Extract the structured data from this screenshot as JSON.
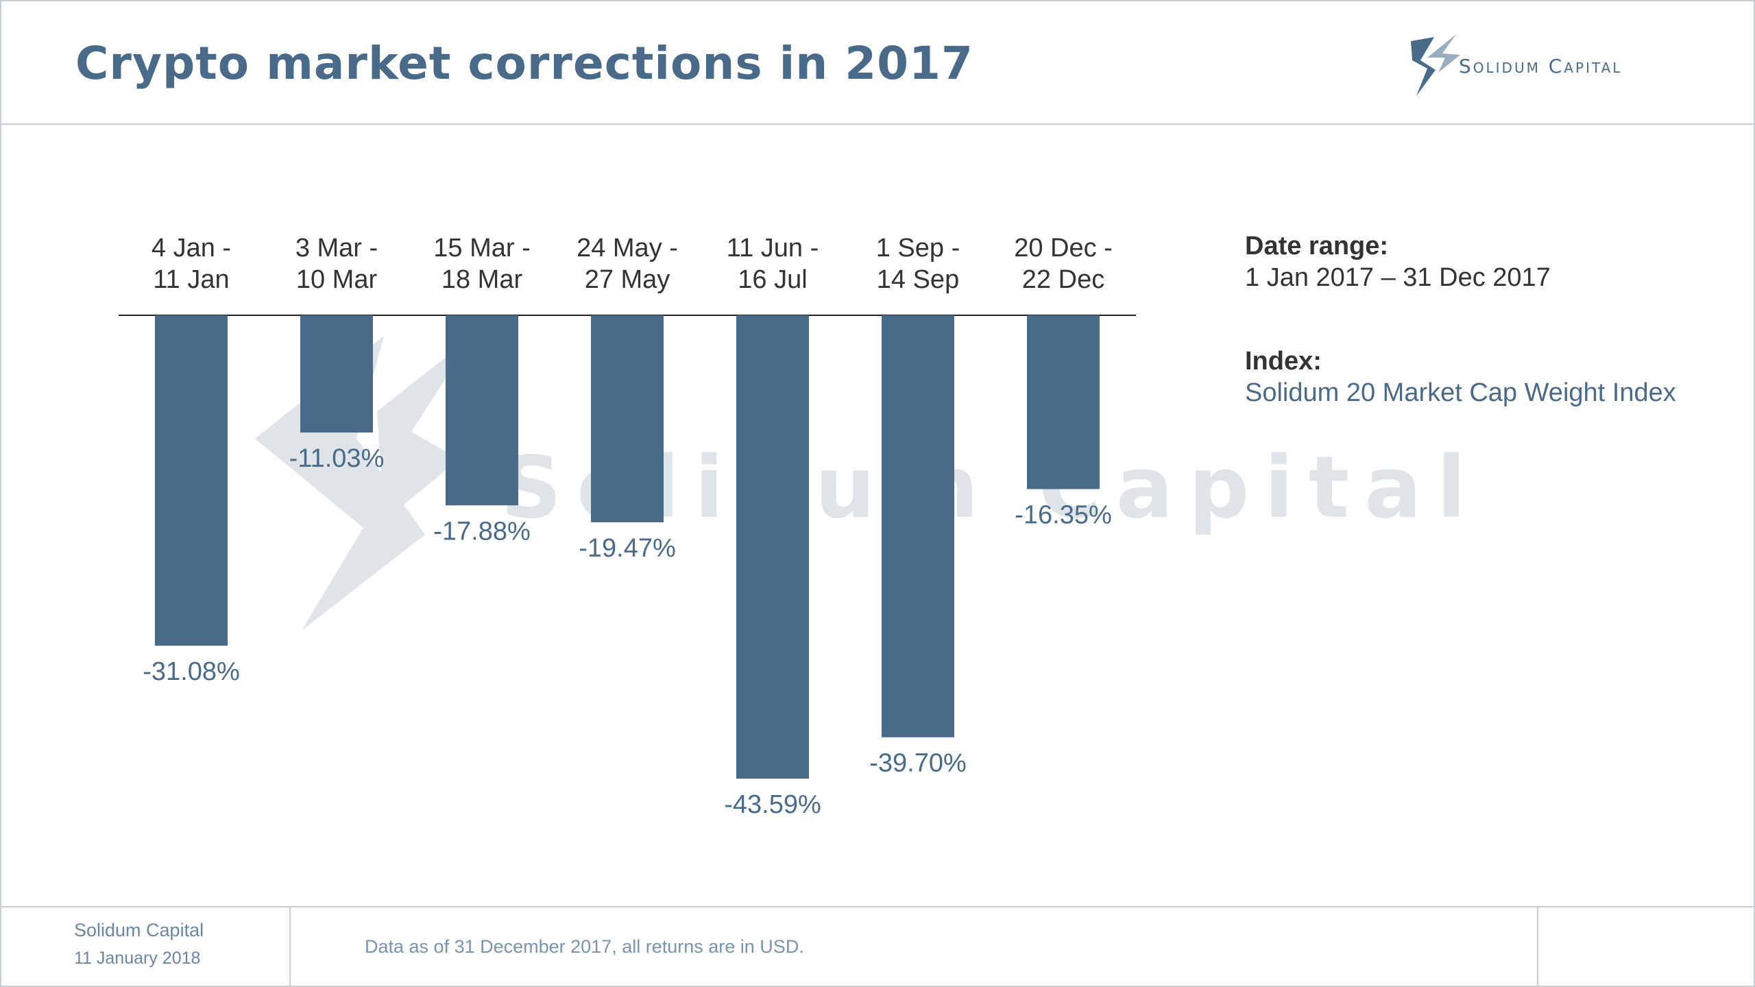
{
  "header": {
    "title": "Crypto market corrections in 2017",
    "brand": "Solidum Capital"
  },
  "colors": {
    "bar": "#4a6a89",
    "title": "#4a6a89",
    "watermark": "#dfe4e8"
  },
  "chart_data": {
    "type": "bar",
    "orientation": "vertical-negative",
    "categories": [
      [
        "4 Jan -",
        "11 Jan"
      ],
      [
        "3 Mar -",
        "10 Mar"
      ],
      [
        "15 Mar -",
        "18 Mar"
      ],
      [
        "24 May -",
        "27 May"
      ],
      [
        "11 Jun -",
        "16 Jul"
      ],
      [
        "1 Sep -",
        "14 Sep"
      ],
      [
        "20 Dec -",
        "22 Dec"
      ]
    ],
    "values": [
      -31.08,
      -11.03,
      -17.88,
      -19.47,
      -43.59,
      -39.7,
      -16.35
    ],
    "data_labels": [
      "-31.08%",
      "-11.03%",
      "-17.88%",
      "-19.47%",
      "-43.59%",
      "-39.70%",
      "-16.35%"
    ],
    "unit": "%",
    "ylim": [
      -45,
      0
    ],
    "grid": false,
    "legend": "none"
  },
  "sidebar": {
    "date_range_label": "Date range:",
    "date_range_value": "1 Jan 2017 – 31 Dec 2017",
    "index_label": "Index:",
    "index_value": "Solidum 20 Market Cap Weight Index"
  },
  "footer": {
    "company": "Solidum Capital",
    "date": "11 January 2018",
    "note": "Data as of 31 December 2017, all returns are in USD."
  }
}
